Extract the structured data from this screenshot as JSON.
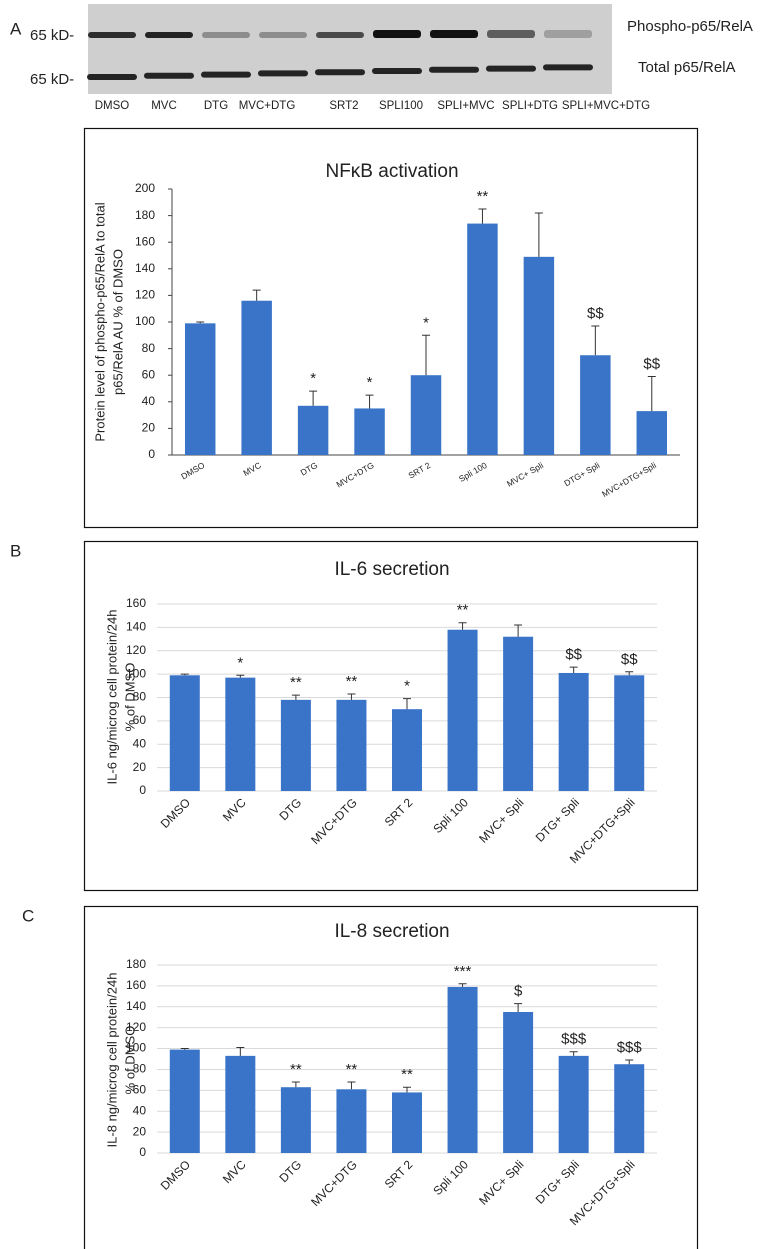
{
  "panel_labels": [
    "A",
    "B",
    "C"
  ],
  "blot": {
    "markers": [
      "65 kD-",
      "65 kD-"
    ],
    "rows": [
      "Phospho-p65/RelA",
      "Total p65/RelA"
    ],
    "lanes": [
      "DMSO",
      "MVC",
      "DTG",
      "MVC+DTG",
      "SRT2",
      "SPLI100",
      "SPLI+MVC",
      "SPLI+DTG",
      "SPLI+MVC+DTG"
    ]
  },
  "chart_data": [
    {
      "type": "bar",
      "title": "NFκB activation",
      "ylabel": [
        "Protein level of phospho-p65/RelA to total",
        "p65/RelA AU % of DMSO"
      ],
      "categories": [
        "DMSO",
        "MVC",
        "DTG",
        "MVC+DTG",
        "SRT 2",
        "Spli 100",
        "MVC+ Spli",
        "DTG+ Spli",
        "MVC+DTG+Spli"
      ],
      "values": [
        99,
        116,
        37,
        35,
        60,
        174,
        149,
        75,
        33
      ],
      "errors": [
        1,
        8,
        11,
        10,
        30,
        11,
        33,
        22,
        26
      ],
      "annotations": [
        null,
        null,
        "*",
        "*",
        "*",
        "**",
        null,
        "$$",
        "$$"
      ],
      "color": "#3a74c9",
      "ylim": [
        0,
        200
      ],
      "yticks": [
        0,
        20,
        40,
        60,
        80,
        100,
        120,
        140,
        160,
        180,
        200
      ],
      "grid": false
    },
    {
      "type": "bar",
      "title": "IL-6 secretion",
      "ylabel": [
        "IL-6 ng/microg cell protein/24h",
        "% of DMSO"
      ],
      "categories": [
        "DMSO",
        "MVC",
        "DTG",
        "MVC+DTG",
        "SRT 2",
        "Spli 100",
        "MVC+ Spli",
        "DTG+ Spli",
        "MVC+DTG+Spli"
      ],
      "values": [
        99,
        97,
        78,
        78,
        70,
        138,
        132,
        101,
        99
      ],
      "errors": [
        1,
        2,
        4,
        5,
        9,
        6,
        10,
        5,
        3
      ],
      "annotations": [
        null,
        "*",
        "**",
        "**",
        "*",
        "**",
        null,
        "$$",
        "$$"
      ],
      "color": "#3a74c9",
      "ylim": [
        0,
        160
      ],
      "yticks": [
        0,
        20,
        40,
        60,
        80,
        100,
        120,
        140,
        160
      ],
      "grid": true
    },
    {
      "type": "bar",
      "title": "IL-8 secretion",
      "ylabel": [
        "IL-8 ng/microg cell protein/24h",
        "% of DMSO"
      ],
      "categories": [
        "DMSO",
        "MVC",
        "DTG",
        "MVC+DTG",
        "SRT 2",
        "Spli 100",
        "MVC+ Spli",
        "DTG+ Spli",
        "MVC+DTG+Spli"
      ],
      "values": [
        99,
        93,
        63,
        61,
        58,
        159,
        135,
        93,
        85
      ],
      "errors": [
        1,
        8,
        5,
        7,
        5,
        3,
        8,
        4,
        4
      ],
      "annotations": [
        null,
        null,
        "**",
        "**",
        "**",
        "***",
        "$",
        "$$$",
        "$$$"
      ],
      "color": "#3a74c9",
      "ylim": [
        0,
        180
      ],
      "yticks": [
        0,
        20,
        40,
        60,
        80,
        100,
        120,
        140,
        160,
        180
      ],
      "grid": true
    }
  ]
}
